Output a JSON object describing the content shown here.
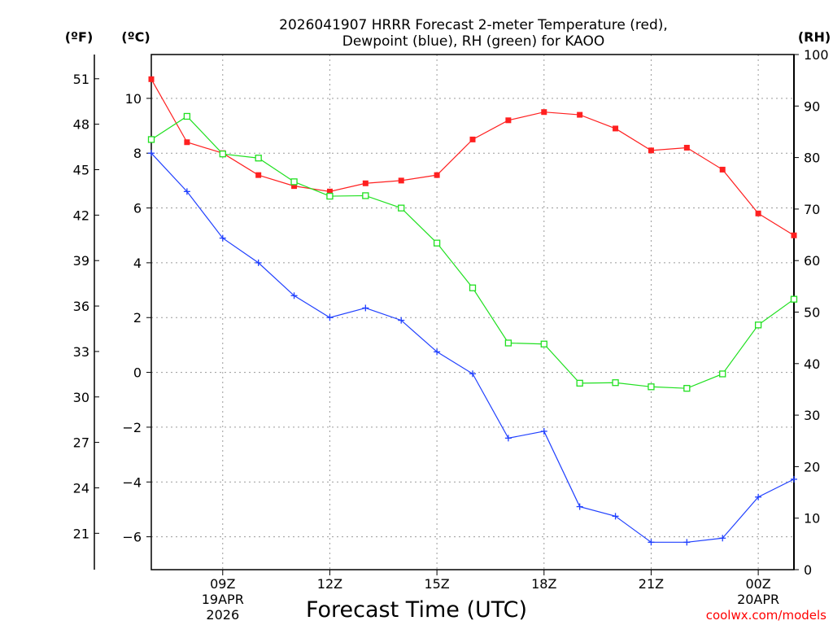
{
  "chart_data": {
    "type": "line",
    "title_lines": [
      "2026041907 HRRR Forecast 2-meter Temperature (red),",
      "Dewpoint (blue), RH (green) for KAOO"
    ],
    "xlabel": "Forecast Time (UTC)",
    "credit": "coolwx.com/models",
    "units": {
      "f": "(ºF)",
      "c": "(ºC)",
      "rh": "(RH)"
    },
    "x_range_hours": [
      7,
      25
    ],
    "x_ticks": [
      {
        "hour": 9,
        "lines": [
          "09Z",
          "19APR",
          "2026"
        ]
      },
      {
        "hour": 12,
        "lines": [
          "12Z"
        ]
      },
      {
        "hour": 15,
        "lines": [
          "15Z"
        ]
      },
      {
        "hour": 18,
        "lines": [
          "18Z"
        ]
      },
      {
        "hour": 21,
        "lines": [
          "21Z"
        ]
      },
      {
        "hour": 24,
        "lines": [
          "00Z",
          "20APR"
        ]
      }
    ],
    "c_axis": {
      "min": -7.2,
      "max": 11.6,
      "ticks": [
        10,
        8,
        6,
        4,
        2,
        0,
        -2,
        -4,
        -6
      ]
    },
    "f_axis": {
      "min": 18.6,
      "max": 52.6,
      "ticks": [
        51,
        48,
        45,
        42,
        39,
        36,
        33,
        30,
        27,
        24,
        21
      ]
    },
    "rh_axis": {
      "min": 0,
      "max": 100,
      "ticks": [
        100,
        90,
        80,
        70,
        60,
        50,
        40,
        30,
        20,
        10,
        0
      ]
    },
    "hours": [
      7,
      8,
      9,
      10,
      11,
      12,
      13,
      14,
      15,
      16,
      17,
      18,
      19,
      20,
      21,
      22,
      23,
      24,
      25
    ],
    "series": [
      {
        "name": "2-meter Temperature",
        "axis": "c",
        "color": "#ff2020",
        "marker": "filled-square",
        "values": [
          10.7,
          8.4,
          8.0,
          7.2,
          6.8,
          6.6,
          6.9,
          7.0,
          7.2,
          8.5,
          9.2,
          9.5,
          9.4,
          8.9,
          8.1,
          8.2,
          7.4,
          5.8,
          5.0
        ]
      },
      {
        "name": "Dewpoint",
        "axis": "c",
        "color": "#2040ff",
        "marker": "plus",
        "values": [
          8.0,
          6.6,
          4.9,
          4.0,
          2.8,
          2.0,
          2.35,
          1.9,
          0.75,
          -0.05,
          -2.4,
          -2.15,
          -4.9,
          -5.25,
          -6.2,
          -6.2,
          -6.05,
          -4.55,
          -3.9
        ]
      },
      {
        "name": "RH",
        "axis": "rh",
        "color": "#20e020",
        "marker": "open-square",
        "values": [
          83.5,
          88,
          80.7,
          79.9,
          75.3,
          72.5,
          72.6,
          70.2,
          63.4,
          54.7,
          44.0,
          43.8,
          36.2,
          36.3,
          35.5,
          35.2,
          38.0,
          47.5,
          52.5
        ]
      }
    ],
    "grid": true,
    "legend": "in title"
  }
}
